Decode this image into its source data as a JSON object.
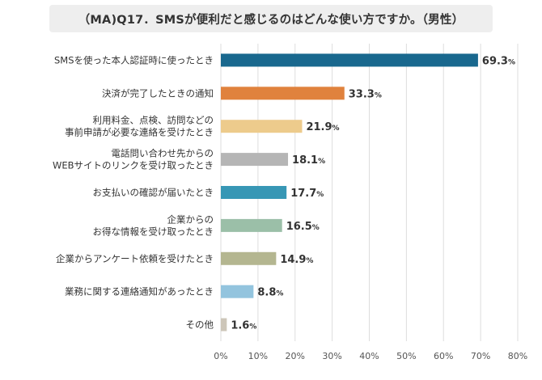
{
  "chart_data": {
    "type": "bar",
    "orientation": "horizontal",
    "title": "（MA)Q17．SMSが便利だと感じるのはどんな使い方ですか。（男性）",
    "categories": [
      [
        "SMSを使った本人認証時に使ったとき"
      ],
      [
        "決済が完了したときの通知"
      ],
      [
        "利用料金、点検、訪問などの",
        "事前申請が必要な連絡を受けたとき"
      ],
      [
        "電話問い合わせ先からの",
        "WEBサイトのリンクを受け取ったとき"
      ],
      [
        "お支払いの確認が届いたとき"
      ],
      [
        "企業からの",
        "お得な情報を受け取ったとき"
      ],
      [
        "企業からアンケート依頼を受けたとき"
      ],
      [
        "業務に関する連絡通知があったとき"
      ],
      [
        "その他"
      ]
    ],
    "values": [
      69.3,
      33.3,
      21.9,
      18.1,
      17.7,
      16.5,
      14.9,
      8.8,
      1.6
    ],
    "value_labels": [
      "69.3",
      "33.3",
      "21.9",
      "18.1",
      "17.7",
      "16.5",
      "14.9",
      "8.8",
      "1.6"
    ],
    "value_unit": "%",
    "colors": [
      "#19688e",
      "#e0823d",
      "#edcb8c",
      "#b5b5b5",
      "#3797b5",
      "#9bbfa8",
      "#b4b690",
      "#93c4de",
      "#cdc6b9"
    ],
    "xlim": [
      0,
      80
    ],
    "ticks": [
      0,
      10,
      20,
      30,
      40,
      50,
      60,
      70,
      80
    ],
    "tick_labels": [
      "0%",
      "10%",
      "20%",
      "30%",
      "40%",
      "50%",
      "60%",
      "70%",
      "80%"
    ],
    "grid": true,
    "legend": "none"
  }
}
